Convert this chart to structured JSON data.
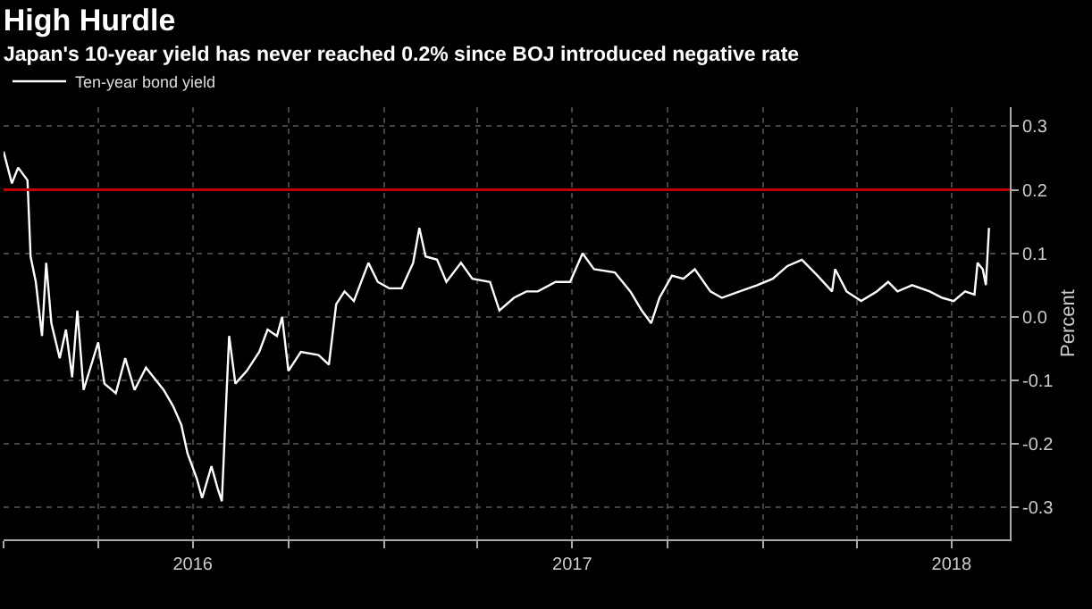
{
  "chart_data": {
    "type": "line",
    "title": "High Hurdle",
    "subtitle": "Japan's 10-year yield has never reached 0.2% since BOJ introduced negative rate",
    "ylabel": "Percent",
    "x": [
      "2016-01-01",
      "2016-01-09",
      "2016-01-15",
      "2016-01-24",
      "2016-01-27",
      "2016-02-01",
      "2016-02-07",
      "2016-02-11",
      "2016-02-16",
      "2016-02-24",
      "2016-03-01",
      "2016-03-07",
      "2016-03-12",
      "2016-03-18",
      "2016-04-01",
      "2016-04-07",
      "2016-04-18",
      "2016-04-27",
      "2016-05-06",
      "2016-05-17",
      "2016-06-03",
      "2016-06-12",
      "2016-06-20",
      "2016-06-26",
      "2016-07-05",
      "2016-07-10",
      "2016-07-19",
      "2016-07-25",
      "2016-07-29",
      "2016-08-02",
      "2016-08-05",
      "2016-08-11",
      "2016-08-22",
      "2016-09-03",
      "2016-09-11",
      "2016-09-20",
      "2016-09-25",
      "2016-10-01",
      "2016-10-13",
      "2016-10-30",
      "2016-11-09",
      "2016-11-16",
      "2016-11-24",
      "2016-12-03",
      "2016-12-17",
      "2016-12-26",
      "2017-01-06",
      "2017-01-18",
      "2017-01-29",
      "2017-02-04",
      "2017-02-10",
      "2017-02-21",
      "2017-03-02",
      "2017-03-16",
      "2017-03-27",
      "2017-04-13",
      "2017-04-22",
      "2017-05-06",
      "2017-05-18",
      "2017-05-29",
      "2017-06-15",
      "2017-06-29",
      "2017-07-11",
      "2017-07-22",
      "2017-08-11",
      "2017-08-26",
      "2017-09-06",
      "2017-09-15",
      "2017-09-23",
      "2017-10-05",
      "2017-10-16",
      "2017-10-27",
      "2017-11-11",
      "2017-11-22",
      "2017-12-09",
      "2017-12-26",
      "2018-01-10",
      "2018-01-24",
      "2018-02-07",
      "2018-02-22",
      "2018-03-08",
      "2018-03-11",
      "2018-03-22",
      "2018-04-05",
      "2018-04-20",
      "2018-05-01",
      "2018-05-10",
      "2018-05-24",
      "2018-06-10",
      "2018-06-22",
      "2018-07-03",
      "2018-07-14",
      "2018-07-23",
      "2018-07-26",
      "2018-07-31",
      "2018-08-03",
      "2018-08-06"
    ],
    "series": [
      {
        "name": "Ten-year bond yield",
        "color": "#ffffff",
        "values": [
          0.26,
          0.21,
          0.235,
          0.215,
          0.095,
          0.055,
          -0.03,
          0.085,
          -0.01,
          -0.065,
          -0.02,
          -0.095,
          0.01,
          -0.115,
          -0.04,
          -0.105,
          -0.12,
          -0.065,
          -0.115,
          -0.08,
          -0.115,
          -0.14,
          -0.17,
          -0.215,
          -0.255,
          -0.285,
          -0.235,
          -0.27,
          -0.29,
          -0.14,
          -0.03,
          -0.105,
          -0.085,
          -0.055,
          -0.02,
          -0.03,
          0.0,
          -0.085,
          -0.055,
          -0.06,
          -0.075,
          0.02,
          0.04,
          0.025,
          0.085,
          0.055,
          0.045,
          0.045,
          0.085,
          0.14,
          0.095,
          0.09,
          0.055,
          0.085,
          0.06,
          0.055,
          0.01,
          0.03,
          0.04,
          0.04,
          0.055,
          0.055,
          0.1,
          0.075,
          0.07,
          0.04,
          0.01,
          -0.01,
          0.03,
          0.065,
          0.06,
          0.075,
          0.04,
          0.03,
          0.04,
          0.05,
          0.06,
          0.08,
          0.09,
          0.065,
          0.04,
          0.075,
          0.04,
          0.025,
          0.04,
          0.055,
          0.04,
          0.05,
          0.04,
          0.03,
          0.025,
          0.04,
          0.035,
          0.085,
          0.075,
          0.05,
          0.14
        ]
      }
    ],
    "xlim": [
      "2016-01-01",
      "2018-08-26"
    ],
    "xticks": [
      {
        "value": "2016-01-01",
        "label": null
      },
      {
        "value": "2016-04-01",
        "label": null
      },
      {
        "value": "2016-07-01",
        "label": "2016"
      },
      {
        "value": "2016-10-01",
        "label": null
      },
      {
        "value": "2017-01-01",
        "label": null
      },
      {
        "value": "2017-04-01",
        "label": null
      },
      {
        "value": "2017-07-01",
        "label": "2017"
      },
      {
        "value": "2017-10-01",
        "label": null
      },
      {
        "value": "2018-01-01",
        "label": null
      },
      {
        "value": "2018-04-01",
        "label": null
      },
      {
        "value": "2018-07-01",
        "label": "2018"
      }
    ],
    "ylim": [
      -0.35,
      0.33
    ],
    "yticks": [
      -0.3,
      -0.2,
      -0.1,
      {
        "value": 0,
        "label": "0.0"
      },
      0.1,
      0.2,
      0.3
    ],
    "ref_lines": [
      {
        "axis": "y",
        "value": 0.2,
        "color": "#c00000"
      }
    ],
    "grid": true,
    "legend": "top left",
    "marker": "none",
    "line_style": "solid"
  }
}
